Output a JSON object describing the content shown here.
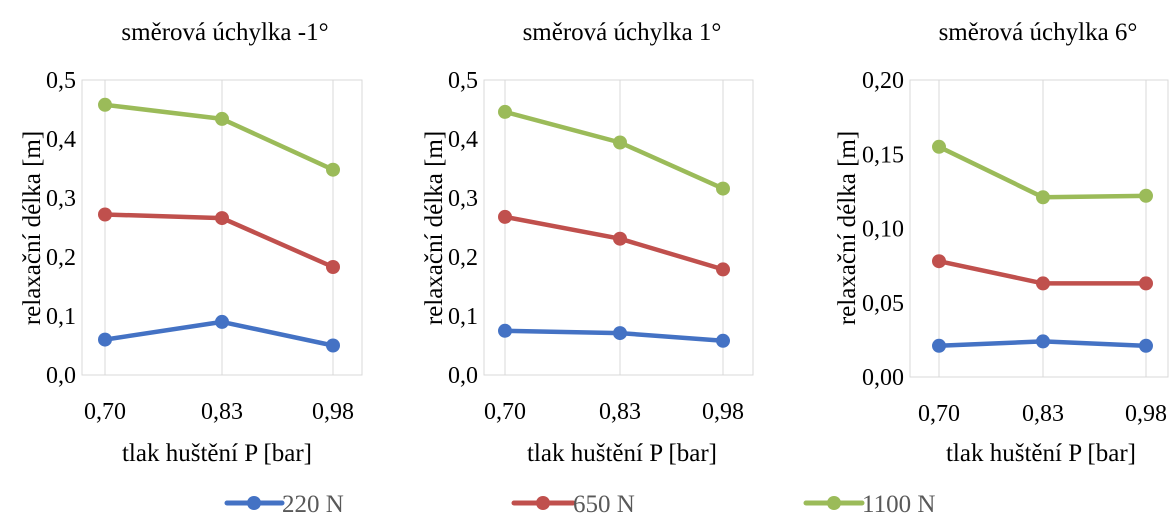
{
  "chart_data": [
    {
      "type": "line",
      "title": "směrová úchylka -1°",
      "xlabel": "tlak huštění P [bar]",
      "ylabel": "relaxační délka [m]",
      "categories": [
        "0,70",
        "0,83",
        "0,98"
      ],
      "ylim": [
        0,
        0.5
      ],
      "yticks": [
        "0,0",
        "0,1",
        "0,2",
        "0,3",
        "0,4",
        "0,5"
      ],
      "grid": "vertical",
      "series": [
        {
          "name": "220 N",
          "values": [
            0.06,
            0.09,
            0.05
          ],
          "color": "#4472c4"
        },
        {
          "name": "650 N",
          "values": [
            0.272,
            0.266,
            0.183
          ],
          "color": "#c0504d"
        },
        {
          "name": "1100 N",
          "values": [
            0.458,
            0.434,
            0.348
          ],
          "color": "#9bbb59"
        }
      ]
    },
    {
      "type": "line",
      "title": "směrová úchylka 1°",
      "xlabel": "tlak huštění P [bar]",
      "ylabel": "relaxační délka [m]",
      "categories": [
        "0,70",
        "0,83",
        "0,98"
      ],
      "ylim": [
        0,
        0.5
      ],
      "yticks": [
        "0,0",
        "0,1",
        "0,2",
        "0,3",
        "0,4",
        "0,5"
      ],
      "grid": "vertical",
      "series": [
        {
          "name": "220 N",
          "values": [
            0.075,
            0.071,
            0.058
          ],
          "color": "#4472c4"
        },
        {
          "name": "650 N",
          "values": [
            0.268,
            0.231,
            0.179
          ],
          "color": "#c0504d"
        },
        {
          "name": "1100 N",
          "values": [
            0.446,
            0.394,
            0.316
          ],
          "color": "#9bbb59"
        }
      ]
    },
    {
      "type": "line",
      "title": "směrová úchylka 6°",
      "xlabel": "tlak huštění P [bar]",
      "ylabel": "relaxační délka [m]",
      "categories": [
        "0,70",
        "0,83",
        "0,98"
      ],
      "ylim": [
        0,
        0.2
      ],
      "yticks": [
        "0,00",
        "0,05",
        "0,10",
        "0,15",
        "0,20"
      ],
      "grid": "vertical",
      "series": [
        {
          "name": "220 N",
          "values": [
            0.021,
            0.024,
            0.021
          ],
          "color": "#4472c4"
        },
        {
          "name": "650 N",
          "values": [
            0.078,
            0.063,
            0.063
          ],
          "color": "#c0504d"
        },
        {
          "name": "1100 N",
          "values": [
            0.155,
            0.121,
            0.122
          ],
          "color": "#9bbb59"
        }
      ]
    }
  ],
  "legend": {
    "placement": "bottom",
    "entries": [
      {
        "name": "220 N",
        "color": "#4472c4"
      },
      {
        "name": "650 N",
        "color": "#c0504d"
      },
      {
        "name": "1100 N",
        "color": "#9bbb59"
      }
    ]
  }
}
